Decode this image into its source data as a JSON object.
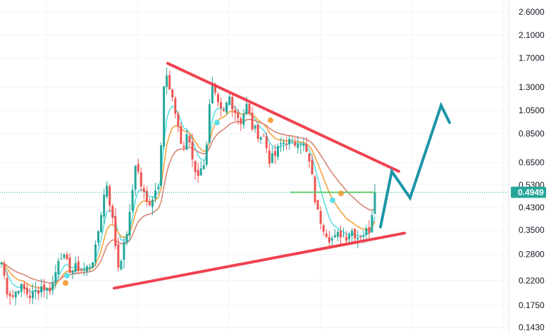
{
  "chart_data": {
    "type": "candlestick",
    "y_scale": "log",
    "ylim": [
      0.137,
      2.9
    ],
    "y_ticks": [
      "2.6000",
      "2.1000",
      "1.7000",
      "1.3000",
      "1.0500",
      "0.8500",
      "0.6500",
      "0.5300",
      "0.4300",
      "0.3500",
      "0.2800",
      "0.2200",
      "0.1750",
      "0.1430"
    ],
    "current_price": "0.4949",
    "current_price_value": 0.4949,
    "grid": true,
    "colors": {
      "up": "#26a69a",
      "down": "#ef5350",
      "ema_fast": "#5ee0e6",
      "ema_mid": "#f5a23c",
      "ema_slow": "#d98473",
      "trendline": "#f0424f",
      "projection": "#1c95a8",
      "flat_line": "#66d65c",
      "price_badge": "#26a69a"
    },
    "close_path": [
      0.26,
      0.2,
      0.19,
      0.21,
      0.2,
      0.19,
      0.2,
      0.21,
      0.2,
      0.22,
      0.29,
      0.26,
      0.24,
      0.25,
      0.24,
      0.25,
      0.28,
      0.4,
      0.55,
      0.39,
      0.25,
      0.3,
      0.4,
      0.66,
      0.52,
      0.44,
      0.48,
      0.55,
      1.55,
      1.2,
      1.0,
      0.72,
      0.85,
      0.62,
      0.58,
      0.7,
      1.35,
      1.1,
      1.0,
      1.2,
      1.05,
      0.95,
      1.1,
      0.9,
      0.85,
      0.82,
      0.66,
      0.7,
      0.78,
      0.8,
      0.76,
      0.82,
      0.74,
      0.62,
      0.42,
      0.37,
      0.33,
      0.32,
      0.34,
      0.33,
      0.35,
      0.33,
      0.34,
      0.35,
      0.49
    ],
    "resistance_line": {
      "start": 1.62,
      "end": 0.6
    },
    "support_line": {
      "start": 0.205,
      "end": 0.34
    },
    "projection": [
      0.36,
      0.6,
      0.47,
      1.1,
      0.94
    ]
  }
}
